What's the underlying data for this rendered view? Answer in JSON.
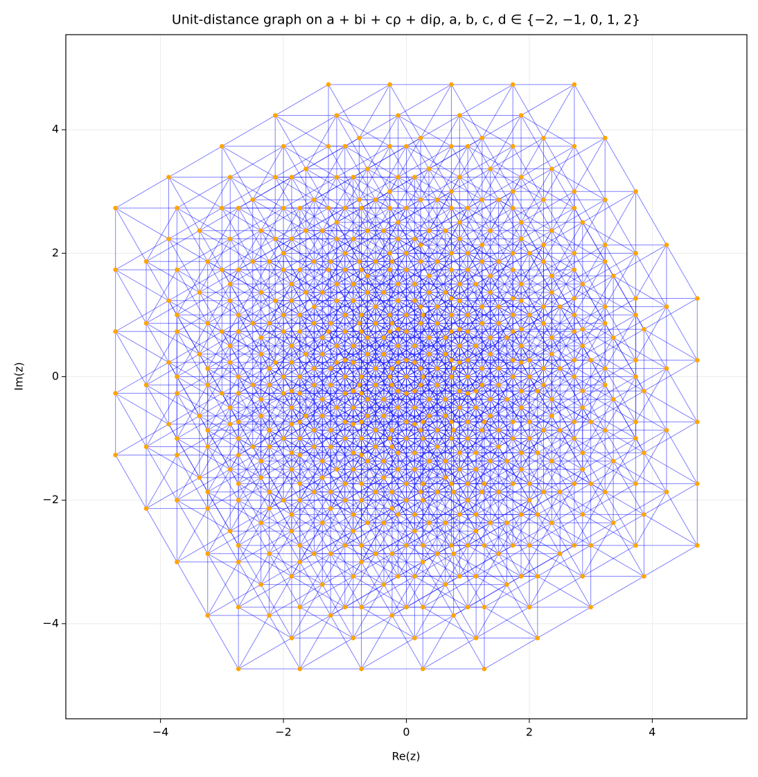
{
  "chart_data": {
    "type": "unit-distance-graph",
    "title": "Unit-distance graph on a + bi + cρ + diρ,  a, b, c, d ∈ {−2, −1, 0, 1, 2}",
    "xlabel": "Re(z)",
    "ylabel": "Im(z)",
    "xlim": [
      -5.54,
      5.54
    ],
    "ylim": [
      -5.54,
      5.54
    ],
    "xticks": [
      {
        "value": -4,
        "label": "−4"
      },
      {
        "value": -2,
        "label": "−2"
      },
      0,
      2,
      4
    ],
    "yticks": [
      {
        "value": -4,
        "label": "−4"
      },
      {
        "value": -2,
        "label": "−2"
      },
      0,
      2,
      4
    ],
    "grid": true,
    "point_color": "#ffa500",
    "edge_color": "#0000ff",
    "edge_length": 1,
    "x": [
      -2.732,
      -2.732,
      -2.732,
      -2.732,
      -2.732,
      -1.732,
      -1.732,
      -1.732,
      -1.732,
      -1.732,
      -0.732,
      -0.732,
      -0.732,
      -0.732,
      -0.732,
      0.268,
      0.268,
      0.268,
      0.268,
      0.268,
      1.268,
      1.268,
      1.268,
      1.268,
      1.268,
      -3.232,
      -3.232,
      -3.232,
      -3.232,
      -3.232,
      -2.232,
      -2.232,
      -2.232,
      -2.232,
      -2.232,
      -1.232,
      -1.232,
      -1.232,
      -1.232,
      -1.232,
      -0.232,
      -0.232,
      -0.232,
      -0.232,
      -0.232,
      0.768,
      0.768,
      0.768,
      0.768,
      0.768,
      -3.732,
      -3.732,
      -3.732,
      -3.732,
      -3.732,
      -2.732,
      -2.732,
      -2.732,
      -2.732,
      -2.732,
      -1.732,
      -1.732,
      -1.732,
      -1.732,
      -1.732,
      -0.732,
      -0.732,
      -0.732,
      -0.732,
      -0.732,
      0.268,
      0.268,
      0.268,
      0.268,
      0.268,
      -4.232,
      -4.232,
      -4.232,
      -4.232,
      -4.232,
      -3.232,
      -3.232,
      -3.232,
      -3.232,
      -3.232,
      -2.232,
      -2.232,
      -2.232,
      -2.232,
      -2.232,
      -1.232,
      -1.232,
      -1.232,
      -1.232,
      -1.232,
      -0.232,
      -0.232,
      -0.232,
      -0.232,
      -0.232,
      -4.732,
      -4.732,
      -4.732,
      -4.732,
      -4.732,
      -3.732,
      -3.732,
      -3.732,
      -3.732,
      -3.732,
      -2.732,
      -2.732,
      -2.732,
      -2.732,
      -2.732,
      -1.732,
      -1.732,
      -1.732,
      -1.732,
      -1.732,
      -0.732,
      -0.732,
      -0.732,
      -0.732,
      -0.732,
      -1.866,
      -1.866,
      -1.866,
      -1.866,
      -1.866,
      -0.866,
      -0.866,
      -0.866,
      -0.866,
      -0.866,
      0.134,
      0.134,
      0.134,
      0.134,
      0.134,
      1.134,
      1.134,
      1.134,
      1.134,
      1.134,
      2.134,
      2.134,
      2.134,
      2.134,
      2.134,
      -2.366,
      -2.366,
      -2.366,
      -2.366,
      -2.366,
      -1.366,
      -1.366,
      -1.366,
      -1.366,
      -1.366,
      -0.366,
      -0.366,
      -0.366,
      -0.366,
      -0.366,
      0.634,
      0.634,
      0.634,
      0.634,
      0.634,
      1.634,
      1.634,
      1.634,
      1.634,
      1.634,
      -2.866,
      -2.866,
      -2.866,
      -2.866,
      -2.866,
      -1.866,
      -1.866,
      -1.866,
      -1.866,
      -1.866,
      -0.866,
      -0.866,
      -0.866,
      -0.866,
      -0.866,
      0.134,
      0.134,
      0.134,
      0.134,
      0.134,
      1.134,
      1.134,
      1.134,
      1.134,
      1.134,
      -3.366,
      -3.366,
      -3.366,
      -3.366,
      -3.366,
      -2.366,
      -2.366,
      -2.366,
      -2.366,
      -2.366,
      -1.366,
      -1.366,
      -1.366,
      -1.366,
      -1.366,
      -0.366,
      -0.366,
      -0.366,
      -0.366,
      -0.366,
      0.634,
      0.634,
      0.634,
      0.634,
      0.634,
      -3.866,
      -3.866,
      -3.866,
      -3.866,
      -3.866,
      -2.866,
      -2.866,
      -2.866,
      -2.866,
      -2.866,
      -1.866,
      -1.866,
      -1.866,
      -1.866,
      -1.866,
      -0.866,
      -0.866,
      -0.866,
      -0.866,
      -0.866,
      0.134,
      0.134,
      0.134,
      0.134,
      0.134,
      -1,
      -1,
      -1,
      -1,
      -1,
      0,
      0,
      0,
      0,
      0,
      1,
      1,
      1,
      1,
      1,
      2,
      2,
      2,
      2,
      2,
      3,
      3,
      3,
      3,
      3,
      -1.5,
      -1.5,
      -1.5,
      -1.5,
      -1.5,
      -0.5,
      -0.5,
      -0.5,
      -0.5,
      -0.5,
      0.5,
      0.5,
      0.5,
      0.5,
      0.5,
      1.5,
      1.5,
      1.5,
      1.5,
      1.5,
      2.5,
      2.5,
      2.5,
      2.5,
      2.5,
      -2,
      -2,
      -2,
      -2,
      -2,
      -1,
      -1,
      -1,
      -1,
      -1,
      0,
      0,
      0,
      0,
      0,
      1,
      1,
      1,
      1,
      1,
      2,
      2,
      2,
      2,
      2,
      -2.5,
      -2.5,
      -2.5,
      -2.5,
      -2.5,
      -1.5,
      -1.5,
      -1.5,
      -1.5,
      -1.5,
      -0.5,
      -0.5,
      -0.5,
      -0.5,
      -0.5,
      0.5,
      0.5,
      0.5,
      0.5,
      0.5,
      1.5,
      1.5,
      1.5,
      1.5,
      1.5,
      -3,
      -3,
      -3,
      -3,
      -3,
      -2,
      -2,
      -2,
      -2,
      -2,
      -1,
      -1,
      -1,
      -1,
      -1,
      0,
      0,
      0,
      0,
      0,
      1,
      1,
      1,
      1,
      1,
      -0.134,
      -0.134,
      -0.134,
      -0.134,
      -0.134,
      0.866,
      0.866,
      0.866,
      0.866,
      0.866,
      1.866,
      1.866,
      1.866,
      1.866,
      1.866,
      2.866,
      2.866,
      2.866,
      2.866,
      2.866,
      3.866,
      3.866,
      3.866,
      3.866,
      3.866,
      -0.634,
      -0.634,
      -0.634,
      -0.634,
      -0.634,
      0.366,
      0.366,
      0.366,
      0.366,
      0.366,
      1.366,
      1.366,
      1.366,
      1.366,
      1.366,
      2.366,
      2.366,
      2.366,
      2.366,
      2.366,
      3.366,
      3.366,
      3.366,
      3.366,
      3.366,
      -1.134,
      -1.134,
      -1.134,
      -1.134,
      -1.134,
      -0.134,
      -0.134,
      -0.134,
      -0.134,
      -0.134,
      0.866,
      0.866,
      0.866,
      0.866,
      0.866,
      1.866,
      1.866,
      1.866,
      1.866,
      1.866,
      2.866,
      2.866,
      2.866,
      2.866,
      2.866,
      -1.634,
      -1.634,
      -1.634,
      -1.634,
      -1.634,
      -0.634,
      -0.634,
      -0.634,
      -0.634,
      -0.634,
      0.366,
      0.366,
      0.366,
      0.366,
      0.366,
      1.366,
      1.366,
      1.366,
      1.366,
      1.366,
      2.366,
      2.366,
      2.366,
      2.366,
      2.366,
      -2.134,
      -2.134,
      -2.134,
      -2.134,
      -2.134,
      -1.134,
      -1.134,
      -1.134,
      -1.134,
      -1.134,
      -0.134,
      -0.134,
      -0.134,
      -0.134,
      -0.134,
      0.866,
      0.866,
      0.866,
      0.866,
      0.866,
      1.866,
      1.866,
      1.866,
      1.866,
      1.866,
      0.732,
      0.732,
      0.732,
      0.732,
      0.732,
      1.732,
      1.732,
      1.732,
      1.732,
      1.732,
      2.732,
      2.732,
      2.732,
      2.732,
      2.732,
      3.732,
      3.732,
      3.732,
      3.732,
      3.732,
      4.732,
      4.732,
      4.732,
      4.732,
      4.732,
      0.232,
      0.232,
      0.232,
      0.232,
      0.232,
      1.232,
      1.232,
      1.232,
      1.232,
      1.232,
      2.232,
      2.232,
      2.232,
      2.232,
      2.232,
      3.232,
      3.232,
      3.232,
      3.232,
      3.232,
      4.232,
      4.232,
      4.232,
      4.232,
      4.232,
      -0.268,
      -0.268,
      -0.268,
      -0.268,
      -0.268,
      0.732,
      0.732,
      0.732,
      0.732,
      0.732,
      1.732,
      1.732,
      1.732,
      1.732,
      1.732,
      2.732,
      2.732,
      2.732,
      2.732,
      2.732,
      3.732,
      3.732,
      3.732,
      3.732,
      3.732,
      -0.768,
      -0.768,
      -0.768,
      -0.768,
      -0.768,
      0.232,
      0.232,
      0.232,
      0.232,
      0.232,
      1.232,
      1.232,
      1.232,
      1.232,
      1.232,
      2.232,
      2.232,
      2.232,
      2.232,
      2.232,
      3.232,
      3.232,
      3.232,
      3.232,
      3.232,
      -1.268,
      -1.268,
      -1.268,
      -1.268,
      -1.268,
      -0.268,
      -0.268,
      -0.268,
      -0.268,
      -0.268,
      0.732,
      0.732,
      0.732,
      0.732,
      0.732,
      1.732,
      1.732,
      1.732,
      1.732,
      1.732,
      2.732,
      2.732,
      2.732,
      2.732,
      2.732
    ],
    "values": [
      -4.732,
      -3.732,
      -2.732,
      -1.732,
      -0.732,
      -4.732,
      -3.732,
      -2.732,
      -1.732,
      -0.732,
      -4.732,
      -3.732,
      -2.732,
      -1.732,
      -0.732,
      -4.732,
      -3.732,
      -2.732,
      -1.732,
      -0.732,
      -4.732,
      -3.732,
      -2.732,
      -1.732,
      -0.732,
      -3.866,
      -2.866,
      -1.866,
      -0.866,
      0.134,
      -3.866,
      -2.866,
      -1.866,
      -0.866,
      0.134,
      -3.866,
      -2.866,
      -1.866,
      -0.866,
      0.134,
      -3.866,
      -2.866,
      -1.866,
      -0.866,
      0.134,
      -3.866,
      -2.866,
      -1.866,
      -0.866,
      0.134,
      -3,
      -2,
      -1,
      0,
      1,
      -3,
      -2,
      -1,
      0,
      1,
      -3,
      -2,
      -1,
      0,
      1,
      -3,
      -2,
      -1,
      0,
      1,
      -3,
      -2,
      -1,
      0,
      1,
      -2.134,
      -1.134,
      -0.134,
      0.866,
      1.866,
      -2.134,
      -1.134,
      -0.134,
      0.866,
      1.866,
      -2.134,
      -1.134,
      -0.134,
      0.866,
      1.866,
      -2.134,
      -1.134,
      -0.134,
      0.866,
      1.866,
      -2.134,
      -1.134,
      -0.134,
      0.866,
      1.866,
      -1.268,
      -0.268,
      0.732,
      1.732,
      2.732,
      -1.268,
      -0.268,
      0.732,
      1.732,
      2.732,
      -1.268,
      -0.268,
      0.732,
      1.732,
      2.732,
      -1.268,
      -0.268,
      0.732,
      1.732,
      2.732,
      -1.268,
      -0.268,
      0.732,
      1.732,
      2.732,
      -4.232,
      -3.232,
      -2.232,
      -1.232,
      -0.232,
      -4.232,
      -3.232,
      -2.232,
      -1.232,
      -0.232,
      -4.232,
      -3.232,
      -2.232,
      -1.232,
      -0.232,
      -4.232,
      -3.232,
      -2.232,
      -1.232,
      -0.232,
      -4.232,
      -3.232,
      -2.232,
      -1.232,
      -0.232,
      -3.366,
      -2.366,
      -1.366,
      -0.366,
      0.634,
      -3.366,
      -2.366,
      -1.366,
      -0.366,
      0.634,
      -3.366,
      -2.366,
      -1.366,
      -0.366,
      0.634,
      -3.366,
      -2.366,
      -1.366,
      -0.366,
      0.634,
      -3.366,
      -2.366,
      -1.366,
      -0.366,
      0.634,
      -2.5,
      -1.5,
      -0.5,
      0.5,
      1.5,
      -2.5,
      -1.5,
      -0.5,
      0.5,
      1.5,
      -2.5,
      -1.5,
      -0.5,
      0.5,
      1.5,
      -2.5,
      -1.5,
      -0.5,
      0.5,
      1.5,
      -2.5,
      -1.5,
      -0.5,
      0.5,
      1.5,
      -1.634,
      -0.634,
      0.366,
      1.366,
      2.366,
      -1.634,
      -0.634,
      0.366,
      1.366,
      2.366,
      -1.634,
      -0.634,
      0.366,
      1.366,
      2.366,
      -1.634,
      -0.634,
      0.366,
      1.366,
      2.366,
      -1.634,
      -0.634,
      0.366,
      1.366,
      2.366,
      -0.768,
      0.232,
      1.232,
      2.232,
      3.232,
      -0.768,
      0.232,
      1.232,
      2.232,
      3.232,
      -0.768,
      0.232,
      1.232,
      2.232,
      3.232,
      -0.768,
      0.232,
      1.232,
      2.232,
      3.232,
      -0.768,
      0.232,
      1.232,
      2.232,
      3.232,
      -3.732,
      -2.732,
      -1.732,
      -0.732,
      0.268,
      -3.732,
      -2.732,
      -1.732,
      -0.732,
      0.268,
      -3.732,
      -2.732,
      -1.732,
      -0.732,
      0.268,
      -3.732,
      -2.732,
      -1.732,
      -0.732,
      0.268,
      -3.732,
      -2.732,
      -1.732,
      -0.732,
      0.268,
      -2.866,
      -1.866,
      -0.866,
      0.134,
      1.134,
      -2.866,
      -1.866,
      -0.866,
      0.134,
      1.134,
      -2.866,
      -1.866,
      -0.866,
      0.134,
      1.134,
      -2.866,
      -1.866,
      -0.866,
      0.134,
      1.134,
      -2.866,
      -1.866,
      -0.866,
      0.134,
      1.134,
      -2,
      -1,
      0,
      1,
      2,
      -2,
      -1,
      0,
      1,
      2,
      -2,
      -1,
      0,
      1,
      2,
      -2,
      -1,
      0,
      1,
      2,
      -2,
      -1,
      0,
      1,
      2,
      -1.134,
      -0.134,
      0.866,
      1.866,
      2.866,
      -1.134,
      -0.134,
      0.866,
      1.866,
      2.866,
      -1.134,
      -0.134,
      0.866,
      1.866,
      2.866,
      -1.134,
      -0.134,
      0.866,
      1.866,
      2.866,
      -1.134,
      -0.134,
      0.866,
      1.866,
      2.866,
      -0.268,
      0.732,
      1.732,
      2.732,
      3.732,
      -0.268,
      0.732,
      1.732,
      2.732,
      3.732,
      -0.268,
      0.732,
      1.732,
      2.732,
      3.732,
      -0.268,
      0.732,
      1.732,
      2.732,
      3.732,
      -0.268,
      0.732,
      1.732,
      2.732,
      3.732,
      -3.232,
      -2.232,
      -1.232,
      -0.232,
      0.768,
      -3.232,
      -2.232,
      -1.232,
      -0.232,
      0.768,
      -3.232,
      -2.232,
      -1.232,
      -0.232,
      0.768,
      -3.232,
      -2.232,
      -1.232,
      -0.232,
      0.768,
      -3.232,
      -2.232,
      -1.232,
      -0.232,
      0.768,
      -2.366,
      -1.366,
      -0.366,
      0.634,
      1.634,
      -2.366,
      -1.366,
      -0.366,
      0.634,
      1.634,
      -2.366,
      -1.366,
      -0.366,
      0.634,
      1.634,
      -2.366,
      -1.366,
      -0.366,
      0.634,
      1.634,
      -2.366,
      -1.366,
      -0.366,
      0.634,
      1.634,
      -1.5,
      -0.5,
      0.5,
      1.5,
      2.5,
      -1.5,
      -0.5,
      0.5,
      1.5,
      2.5,
      -1.5,
      -0.5,
      0.5,
      1.5,
      2.5,
      -1.5,
      -0.5,
      0.5,
      1.5,
      2.5,
      -1.5,
      -0.5,
      0.5,
      1.5,
      2.5,
      -0.634,
      0.366,
      1.366,
      2.366,
      3.366,
      -0.634,
      0.366,
      1.366,
      2.366,
      3.366,
      -0.634,
      0.366,
      1.366,
      2.366,
      3.366,
      -0.634,
      0.366,
      1.366,
      2.366,
      3.366,
      -0.634,
      0.366,
      1.366,
      2.366,
      3.366,
      0.232,
      1.232,
      2.232,
      3.232,
      4.232,
      0.232,
      1.232,
      2.232,
      3.232,
      4.232,
      0.232,
      1.232,
      2.232,
      3.232,
      4.232,
      0.232,
      1.232,
      2.232,
      3.232,
      4.232,
      0.232,
      1.232,
      2.232,
      3.232,
      4.232,
      -2.732,
      -1.732,
      -0.732,
      0.268,
      1.268,
      -2.732,
      -1.732,
      -0.732,
      0.268,
      1.268,
      -2.732,
      -1.732,
      -0.732,
      0.268,
      1.268,
      -2.732,
      -1.732,
      -0.732,
      0.268,
      1.268,
      -2.732,
      -1.732,
      -0.732,
      0.268,
      1.268,
      -1.866,
      -0.866,
      0.134,
      1.134,
      2.134,
      -1.866,
      -0.866,
      0.134,
      1.134,
      2.134,
      -1.866,
      -0.866,
      0.134,
      1.134,
      2.134,
      -1.866,
      -0.866,
      0.134,
      1.134,
      2.134,
      -1.866,
      -0.866,
      0.134,
      1.134,
      2.134,
      -1,
      0,
      1,
      2,
      3,
      -1,
      0,
      1,
      2,
      3,
      -1,
      0,
      1,
      2,
      3,
      -1,
      0,
      1,
      2,
      3,
      -1,
      0,
      1,
      2,
      3,
      -0.134,
      0.866,
      1.866,
      2.866,
      3.866,
      -0.134,
      0.866,
      1.866,
      2.866,
      3.866,
      -0.134,
      0.866,
      1.866,
      2.866,
      3.866,
      -0.134,
      0.866,
      1.866,
      2.866,
      3.866,
      -0.134,
      0.866,
      1.866,
      2.866,
      3.866,
      0.732,
      1.732,
      2.732,
      3.732,
      4.732,
      0.732,
      1.732,
      2.732,
      3.732,
      4.732,
      0.732,
      1.732,
      2.732,
      3.732,
      4.732,
      0.732,
      1.732,
      2.732,
      3.732,
      4.732,
      0.732,
      1.732,
      2.732,
      3.732,
      4.732
    ]
  }
}
